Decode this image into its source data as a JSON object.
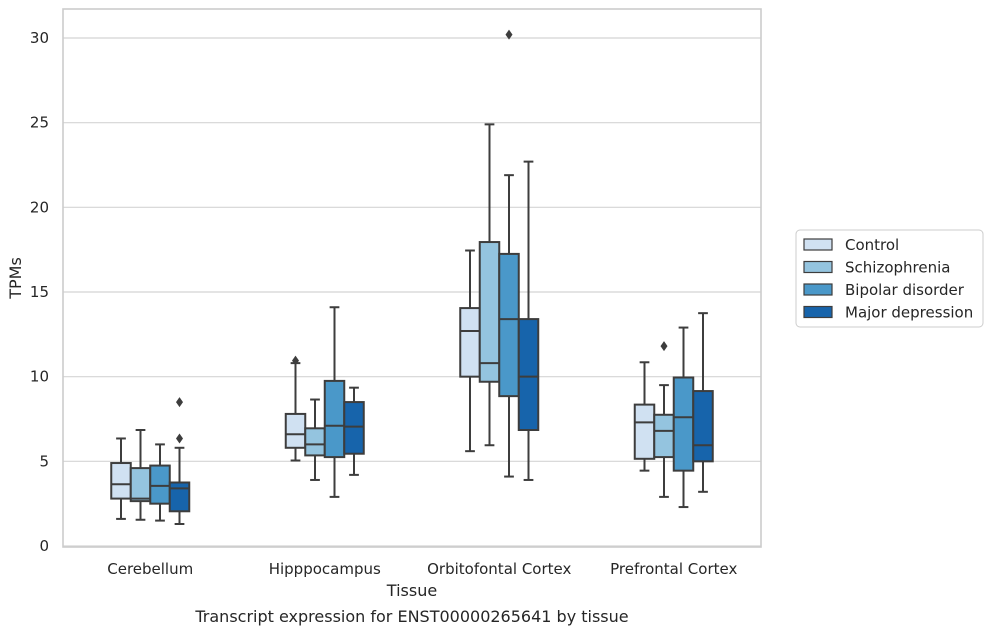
{
  "chart_data": {
    "type": "box",
    "caption": "Transcript expression for ENST00000265641 by tissue",
    "xlabel": "Tissue",
    "ylabel": "TPMs",
    "ylim": [
      0,
      31.7
    ],
    "yticks": [
      0,
      5,
      10,
      15,
      20,
      25,
      30
    ],
    "grid": "horizontal",
    "legend_position": "right",
    "categories": [
      "Cerebellum",
      "Hipppocampus",
      "Orbitofontal Cortex",
      "Prefrontal Cortex"
    ],
    "series": [
      {
        "name": "Control",
        "color": "#d0e1f2",
        "boxes": [
          {
            "whisker_low": 1.6,
            "q1": 2.8,
            "median": 3.65,
            "q3": 4.9,
            "whisker_high": 6.35,
            "outliers": []
          },
          {
            "whisker_low": 5.05,
            "q1": 5.8,
            "median": 6.6,
            "q3": 7.8,
            "whisker_high": 10.8,
            "outliers": [
              10.95
            ]
          },
          {
            "whisker_low": 5.6,
            "q1": 10.0,
            "median": 12.7,
            "q3": 14.05,
            "whisker_high": 17.45,
            "outliers": []
          },
          {
            "whisker_low": 4.45,
            "q1": 5.15,
            "median": 7.3,
            "q3": 8.35,
            "whisker_high": 10.85,
            "outliers": []
          }
        ]
      },
      {
        "name": "Schizophrenia",
        "color": "#94c4df",
        "boxes": [
          {
            "whisker_low": 1.55,
            "q1": 2.65,
            "median": 2.8,
            "q3": 4.6,
            "whisker_high": 6.85,
            "outliers": []
          },
          {
            "whisker_low": 3.9,
            "q1": 5.35,
            "median": 6.0,
            "q3": 6.95,
            "whisker_high": 8.65,
            "outliers": []
          },
          {
            "whisker_low": 5.95,
            "q1": 9.7,
            "median": 10.8,
            "q3": 17.95,
            "whisker_high": 24.9,
            "outliers": []
          },
          {
            "whisker_low": 2.9,
            "q1": 5.25,
            "median": 6.8,
            "q3": 7.75,
            "whisker_high": 9.5,
            "outliers": [
              11.8
            ]
          }
        ]
      },
      {
        "name": "Bipolar disorder",
        "color": "#4a98c9",
        "boxes": [
          {
            "whisker_low": 1.5,
            "q1": 2.5,
            "median": 3.55,
            "q3": 4.75,
            "whisker_high": 6.0,
            "outliers": []
          },
          {
            "whisker_low": 2.9,
            "q1": 5.25,
            "median": 7.1,
            "q3": 9.75,
            "whisker_high": 14.1,
            "outliers": []
          },
          {
            "whisker_low": 4.1,
            "q1": 8.85,
            "median": 13.4,
            "q3": 17.25,
            "whisker_high": 21.9,
            "outliers": [
              30.2
            ]
          },
          {
            "whisker_low": 2.3,
            "q1": 4.45,
            "median": 7.6,
            "q3": 9.95,
            "whisker_high": 12.9,
            "outliers": []
          }
        ]
      },
      {
        "name": "Major depression",
        "color": "#1764ab",
        "boxes": [
          {
            "whisker_low": 1.3,
            "q1": 2.05,
            "median": 3.4,
            "q3": 3.75,
            "whisker_high": 5.8,
            "outliers": [
              6.35,
              8.5
            ]
          },
          {
            "whisker_low": 4.2,
            "q1": 5.45,
            "median": 7.05,
            "q3": 8.5,
            "whisker_high": 9.35,
            "outliers": []
          },
          {
            "whisker_low": 3.9,
            "q1": 6.85,
            "median": 10.0,
            "q3": 13.4,
            "whisker_high": 22.7,
            "outliers": []
          },
          {
            "whisker_low": 3.2,
            "q1": 5.0,
            "median": 5.95,
            "q3": 9.15,
            "whisker_high": 13.75,
            "outliers": []
          }
        ]
      }
    ]
  }
}
